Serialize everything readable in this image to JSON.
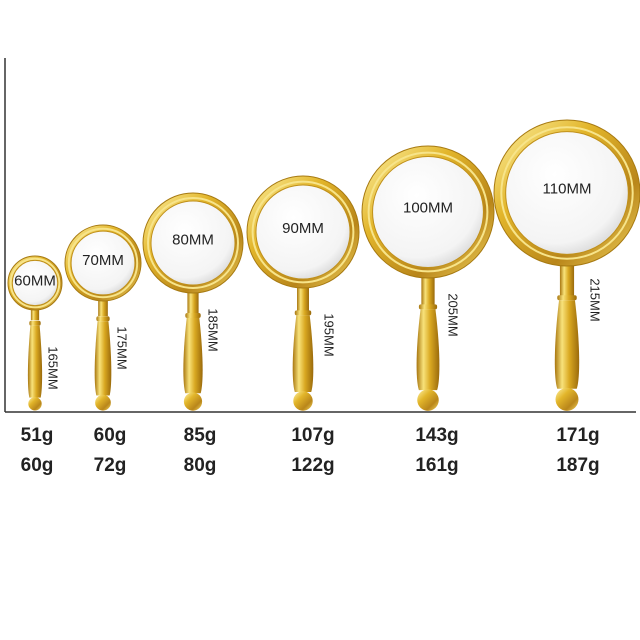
{
  "items": [
    {
      "lens": "60MM",
      "length": "165MM",
      "weights": [
        "51g",
        "60g"
      ]
    },
    {
      "lens": "70MM",
      "length": "175MM",
      "weights": [
        "60g",
        "72g"
      ]
    },
    {
      "lens": "80MM",
      "length": "185MM",
      "weights": [
        "85g",
        "80g"
      ]
    },
    {
      "lens": "90MM",
      "length": "195MM",
      "weights": [
        "107g",
        "122g"
      ]
    },
    {
      "lens": "100MM",
      "length": "205MM",
      "weights": [
        "143g",
        "161g"
      ]
    },
    {
      "lens": "110MM",
      "length": "215MM",
      "weights": [
        "171g",
        "187g"
      ]
    }
  ]
}
